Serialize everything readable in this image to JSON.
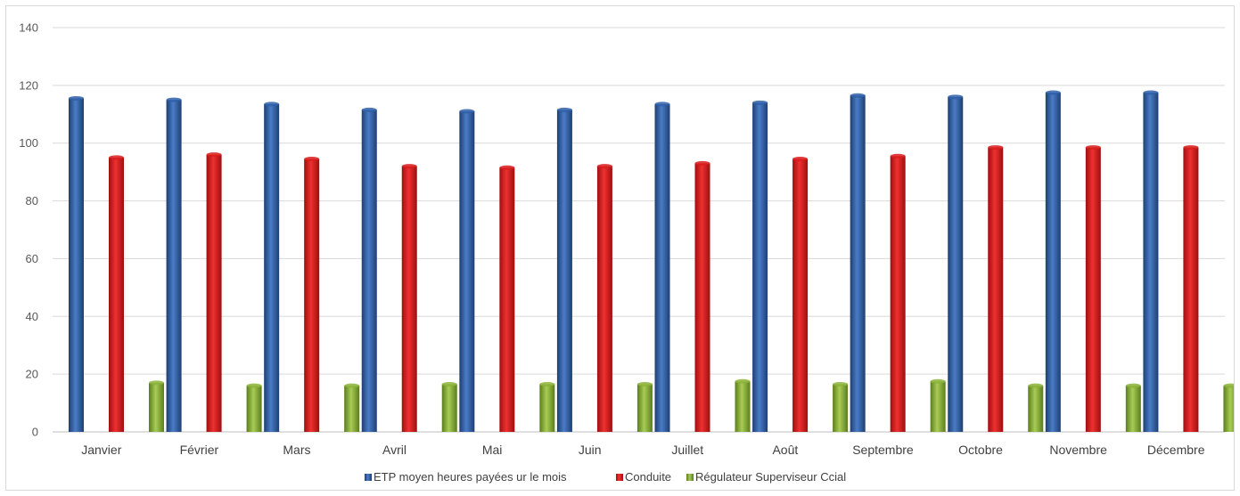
{
  "chart_data": {
    "type": "bar",
    "title": "",
    "xlabel": "",
    "ylabel": "",
    "ylim": [
      0,
      140
    ],
    "yticks": [
      0,
      20,
      40,
      60,
      80,
      100,
      120,
      140
    ],
    "grid": true,
    "legend_position": "bottom",
    "categories": [
      "Janvier",
      "Février",
      "Mars",
      "Avril",
      "Mai",
      "Juin",
      "Juillet",
      "Août",
      "Septembre",
      "Octobre",
      "Novembre",
      "Décembre"
    ],
    "series": [
      {
        "name": "ETP moyen heures payées ur le mois",
        "color": "#2f5fa8",
        "values": [
          115.5,
          115,
          113.5,
          111.5,
          111,
          111.5,
          113.5,
          114,
          116.5,
          116,
          117.5,
          117.5
        ]
      },
      {
        "name": "Conduite",
        "color": "#d91c1c",
        "values": [
          95,
          96,
          94.5,
          92,
          91.5,
          92,
          93,
          94.5,
          95.5,
          98.5,
          98.5,
          98.5
        ]
      },
      {
        "name": "Régulateur Superviseur Ccial",
        "color": "#8cb33a",
        "values": [
          17,
          16,
          16,
          16.5,
          16.5,
          16.5,
          17.5,
          16.5,
          17.5,
          16,
          16,
          16
        ]
      }
    ]
  }
}
